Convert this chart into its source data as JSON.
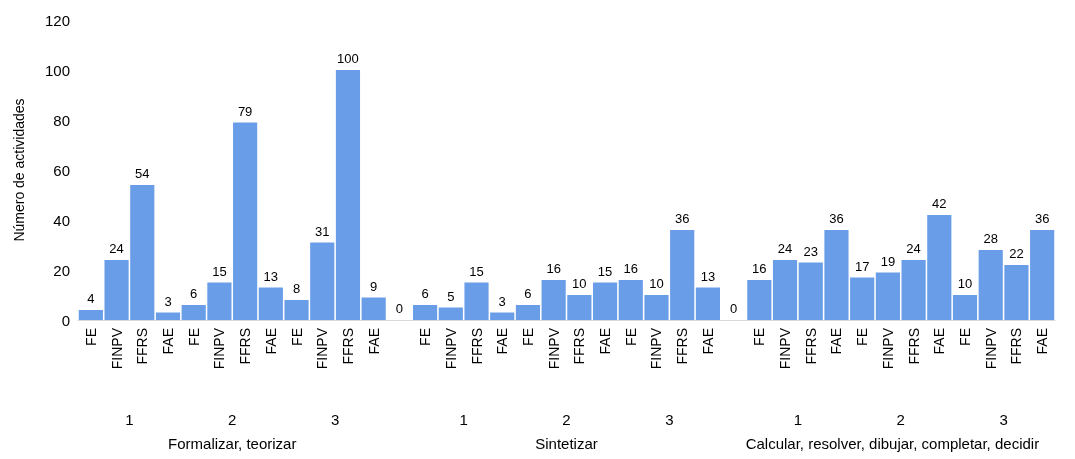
{
  "chart_data": {
    "type": "bar",
    "ylabel": "Número de actividades",
    "categories": [
      "FE",
      "FINPV",
      "FFRS",
      "FAE",
      "FE",
      "FINPV",
      "FFRS",
      "FAE",
      "FE",
      "FINPV",
      "FFRS",
      "FAE",
      null,
      "FE",
      "FINPV",
      "FFRS",
      "FAE",
      "FE",
      "FINPV",
      "FFRS",
      "FAE",
      "FE",
      "FINPV",
      "FFRS",
      "FAE",
      null,
      "FE",
      "FINPV",
      "FFRS",
      "FAE",
      "FE",
      "FINPV",
      "FFRS",
      "FAE",
      "FE",
      "FINPV",
      "FFRS",
      "FAE"
    ],
    "values": [
      4,
      24,
      54,
      3,
      6,
      15,
      79,
      13,
      8,
      31,
      100,
      9,
      0,
      6,
      5,
      15,
      3,
      6,
      16,
      10,
      15,
      16,
      10,
      36,
      13,
      0,
      16,
      24,
      23,
      36,
      17,
      19,
      24,
      42,
      10,
      28,
      22,
      36
    ],
    "color": "#6a9de8",
    "ylim": [
      0,
      120
    ],
    "yticks": [
      0,
      20,
      40,
      60,
      80,
      100,
      120
    ],
    "grid": false,
    "data_labels": true,
    "annotations": [
      "1",
      "2",
      "3",
      "Formalizar, teorizar",
      "1",
      "2",
      "3",
      "Sintetizar",
      "1",
      "2",
      "3",
      "Calcular, resolver, dibujar, completar, decidir"
    ]
  }
}
